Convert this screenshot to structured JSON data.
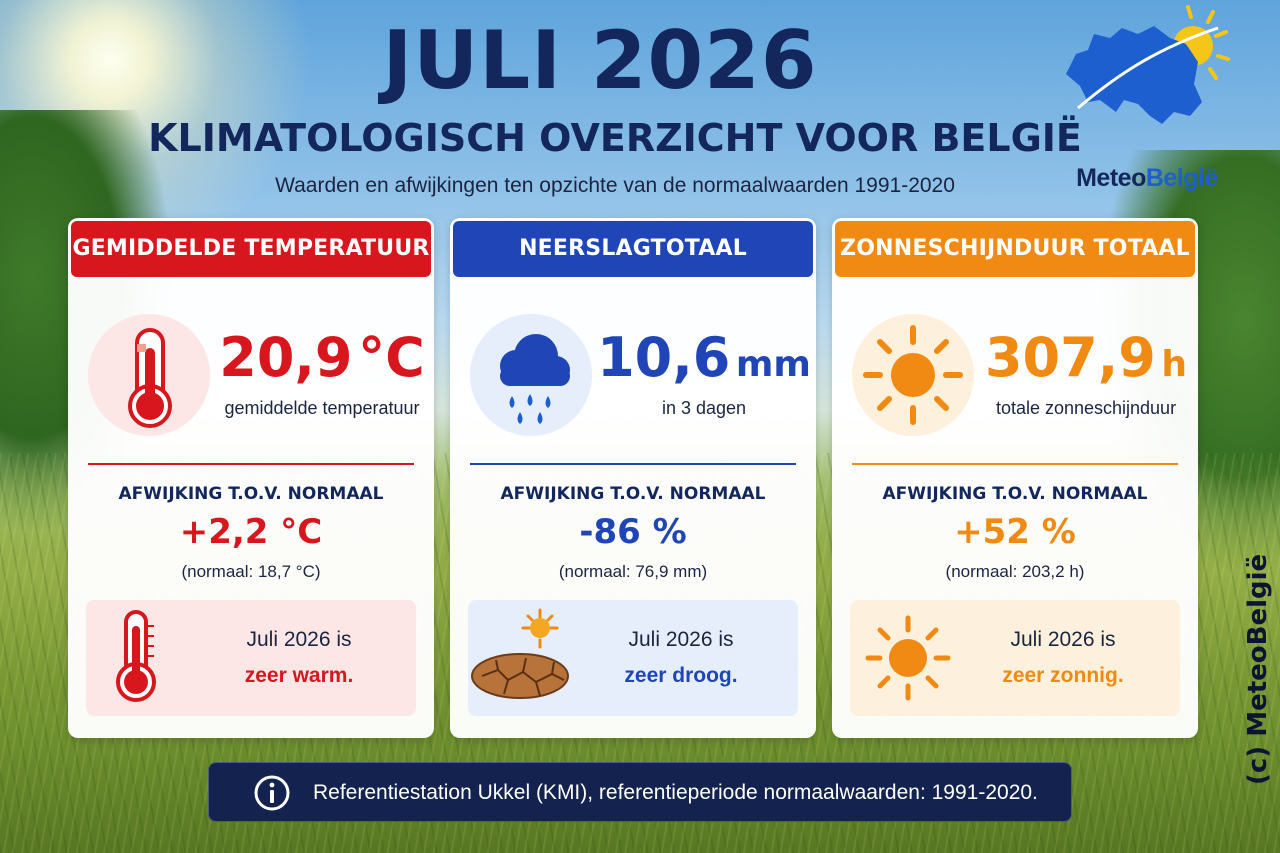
{
  "title": "JULI 2026",
  "subtitle": "KLIMATOLOGISCH OVERZICHT VOOR BELGIË",
  "tagline": "Waarden en afwijkingen ten opzichte van de normaalwaarden 1991-2020",
  "logo": {
    "part1": "Meteo",
    "part2": "België",
    "icon": "belgium-map-sun-icon"
  },
  "cards": [
    {
      "header": "GEMIDDELDE TEMPERATUUR",
      "color": "#d7161e",
      "light": "#fde6e6",
      "icon": "thermometer-icon",
      "value": "20,9",
      "unit": "°C",
      "caption": "gemiddelde temperatuur",
      "deviation_label": "AFWIJKING T.O.V. NORMAAL",
      "deviation": "+2,2 °C",
      "normal": "(normaal: 18,7 °C)",
      "verdict_line1": "Juli 2026 is",
      "verdict_line2": "zeer warm."
    },
    {
      "header": "NEERSLAGTOTAAL",
      "color": "#1f45b7",
      "light": "#e6eefb",
      "icon": "rain-cloud-icon",
      "value": "10,6",
      "unit": "mm",
      "caption": "in 3 dagen",
      "deviation_label": "AFWIJKING T.O.V. NORMAAL",
      "deviation": "-86 %",
      "normal": "(normaal: 76,9 mm)",
      "verdict_line1": "Juli 2026 is",
      "verdict_line2": "zeer droog."
    },
    {
      "header": "ZONNESCHIJNDUUR TOTAAL",
      "color": "#f08a12",
      "light": "#fdf0dc",
      "icon": "sun-icon",
      "value": "307,9",
      "unit": "h",
      "caption": "totale zonneschijnduur",
      "deviation_label": "AFWIJKING T.O.V. NORMAAL",
      "deviation": "+52 %",
      "normal": "(normaal: 203,2 h)",
      "verdict_line1": "Juli 2026 is",
      "verdict_line2": "zeer zonnig."
    }
  ],
  "footer": {
    "text": "Referentiestation Ukkel (KMI), referentieperiode normaalwaarden: 1991-2020.",
    "icon": "info-icon"
  },
  "copyright": "(c) MeteoBelgië"
}
